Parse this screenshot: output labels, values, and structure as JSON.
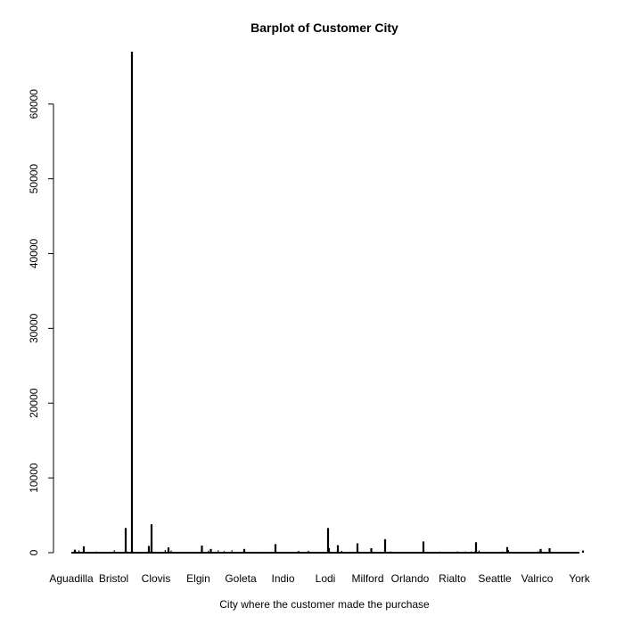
{
  "chart_data": {
    "type": "bar",
    "title": "Barplot of Customer City",
    "xlabel": "City where the customer made the purchase",
    "ylabel": "",
    "ylim": [
      0,
      67000
    ],
    "yticks": [
      0,
      10000,
      20000,
      30000,
      40000,
      50000,
      60000
    ],
    "x_tick_labels": [
      "Aguadilla",
      "Bristol",
      "Clovis",
      "Elgin",
      "Goleta",
      "Indio",
      "Lodi",
      "Milford",
      "Orlando",
      "Rialto",
      "Seattle",
      "Valrico",
      "York"
    ],
    "notable_bars": [
      {
        "near": "Aguadilla",
        "value": 400
      },
      {
        "near": "Aguadilla",
        "value": 850
      },
      {
        "near": "Bristol",
        "value": 3300
      },
      {
        "near": "Bristol",
        "value": 67000
      },
      {
        "near": "Clovis",
        "value": 3800
      },
      {
        "near": "Clovis",
        "value": 700
      },
      {
        "near": "Clovis",
        "value": 900
      },
      {
        "near": "Elgin",
        "value": 950
      },
      {
        "near": "Elgin",
        "value": 500
      },
      {
        "near": "Goleta",
        "value": 500
      },
      {
        "near": "Indio",
        "value": 1150
      },
      {
        "near": "Lodi",
        "value": 600
      },
      {
        "near": "Lodi",
        "value": 1000
      },
      {
        "near": "Lodi",
        "value": 3300
      },
      {
        "near": "Milford",
        "value": 600
      },
      {
        "near": "Milford",
        "value": 1250
      },
      {
        "near": "Orlando",
        "value": 1800
      },
      {
        "near": "Rialto",
        "value": 1500
      },
      {
        "near": "Seattle",
        "value": 1400
      },
      {
        "near": "Seattle",
        "value": 750
      },
      {
        "near": "Valrico",
        "value": 500
      },
      {
        "near": "Valrico",
        "value": 600
      },
      {
        "near": "York",
        "value": 300
      }
    ],
    "bar_color": "#000000"
  }
}
